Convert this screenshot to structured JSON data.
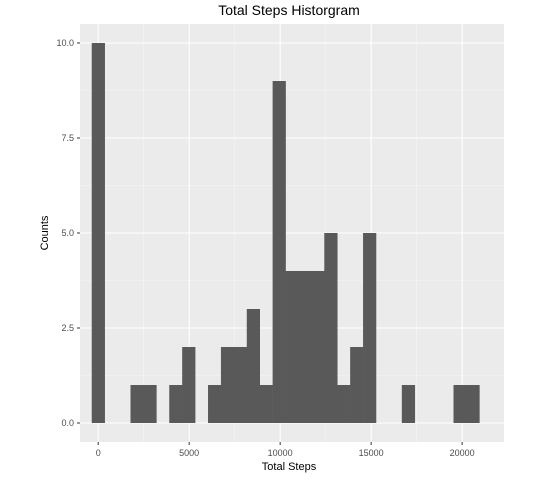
{
  "chart_data": {
    "type": "bar",
    "title": "Total Steps Historgram",
    "xlabel": "Total Steps",
    "ylabel": "Counts",
    "xlim": [
      -1000,
      22300
    ],
    "ylim": [
      -0.5,
      10.5
    ],
    "x_ticks": [
      0,
      5000,
      10000,
      15000,
      20000
    ],
    "x_tick_labels": [
      "0",
      "5000",
      "10000",
      "15000",
      "20000"
    ],
    "y_ticks": [
      0,
      2.5,
      5,
      7.5,
      10
    ],
    "y_tick_labels": [
      "0.0",
      "2.5",
      "5.0",
      "7.5",
      "10.0"
    ],
    "bin_width": 710,
    "bins": [
      {
        "x0": -355,
        "x1": 355,
        "count": 10
      },
      {
        "x0": 355,
        "x1": 1065,
        "count": 0
      },
      {
        "x0": 1065,
        "x1": 1775,
        "count": 0
      },
      {
        "x0": 1775,
        "x1": 2485,
        "count": 1
      },
      {
        "x0": 2485,
        "x1": 3195,
        "count": 1
      },
      {
        "x0": 3195,
        "x1": 3905,
        "count": 0
      },
      {
        "x0": 3905,
        "x1": 4615,
        "count": 1
      },
      {
        "x0": 4615,
        "x1": 5325,
        "count": 2
      },
      {
        "x0": 5325,
        "x1": 6035,
        "count": 0
      },
      {
        "x0": 6035,
        "x1": 6745,
        "count": 1
      },
      {
        "x0": 6745,
        "x1": 7455,
        "count": 2
      },
      {
        "x0": 7455,
        "x1": 8165,
        "count": 2
      },
      {
        "x0": 8165,
        "x1": 8875,
        "count": 3
      },
      {
        "x0": 8875,
        "x1": 9585,
        "count": 1
      },
      {
        "x0": 9585,
        "x1": 10295,
        "count": 9
      },
      {
        "x0": 10295,
        "x1": 11005,
        "count": 4
      },
      {
        "x0": 11005,
        "x1": 11715,
        "count": 4
      },
      {
        "x0": 11715,
        "x1": 12425,
        "count": 4
      },
      {
        "x0": 12425,
        "x1": 13135,
        "count": 5
      },
      {
        "x0": 13135,
        "x1": 13845,
        "count": 1
      },
      {
        "x0": 13845,
        "x1": 14555,
        "count": 2
      },
      {
        "x0": 14555,
        "x1": 15265,
        "count": 5
      },
      {
        "x0": 15265,
        "x1": 15975,
        "count": 0
      },
      {
        "x0": 15975,
        "x1": 16685,
        "count": 0
      },
      {
        "x0": 16685,
        "x1": 17395,
        "count": 1
      },
      {
        "x0": 17395,
        "x1": 18105,
        "count": 0
      },
      {
        "x0": 18105,
        "x1": 18815,
        "count": 0
      },
      {
        "x0": 18815,
        "x1": 19525,
        "count": 0
      },
      {
        "x0": 19525,
        "x1": 20235,
        "count": 1
      },
      {
        "x0": 20235,
        "x1": 20945,
        "count": 1
      }
    ],
    "grid": true,
    "legend": "none",
    "colors": {
      "bar": "#595959",
      "panel_background": "#ebebeb",
      "grid_major": "#ffffff",
      "grid_minor": "#f5f5f5"
    }
  }
}
